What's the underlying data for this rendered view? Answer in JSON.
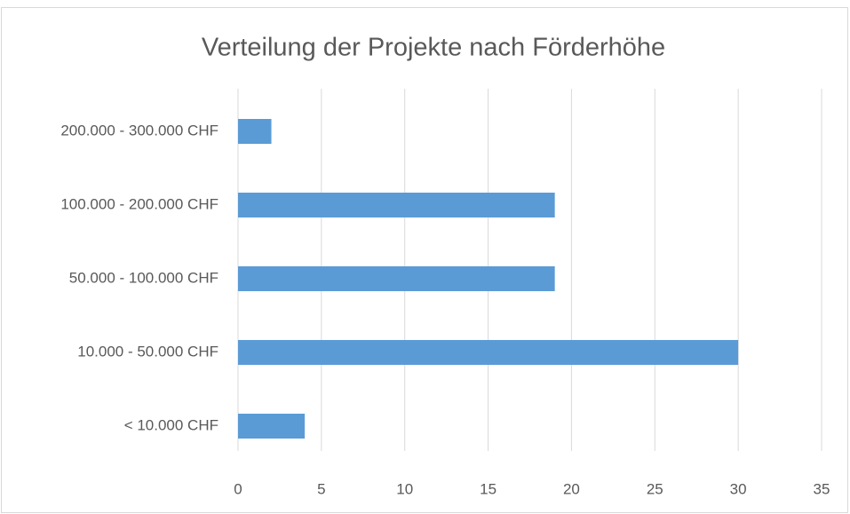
{
  "chart_data": {
    "type": "bar",
    "orientation": "horizontal",
    "title": "Verteilung der Projekte nach Förderhöhe",
    "categories": [
      "< 10.000 CHF",
      "10.000 - 50.000 CHF",
      "50.000 - 100.000 CHF",
      "100.000 - 200.000 CHF",
      "200.000 - 300.000 CHF"
    ],
    "values": [
      4,
      30,
      19,
      19,
      2
    ],
    "color": "#5b9bd5",
    "xlim": [
      0,
      35
    ],
    "xticks": [
      0,
      5,
      10,
      15,
      20,
      25,
      30,
      35
    ],
    "grid": true
  }
}
